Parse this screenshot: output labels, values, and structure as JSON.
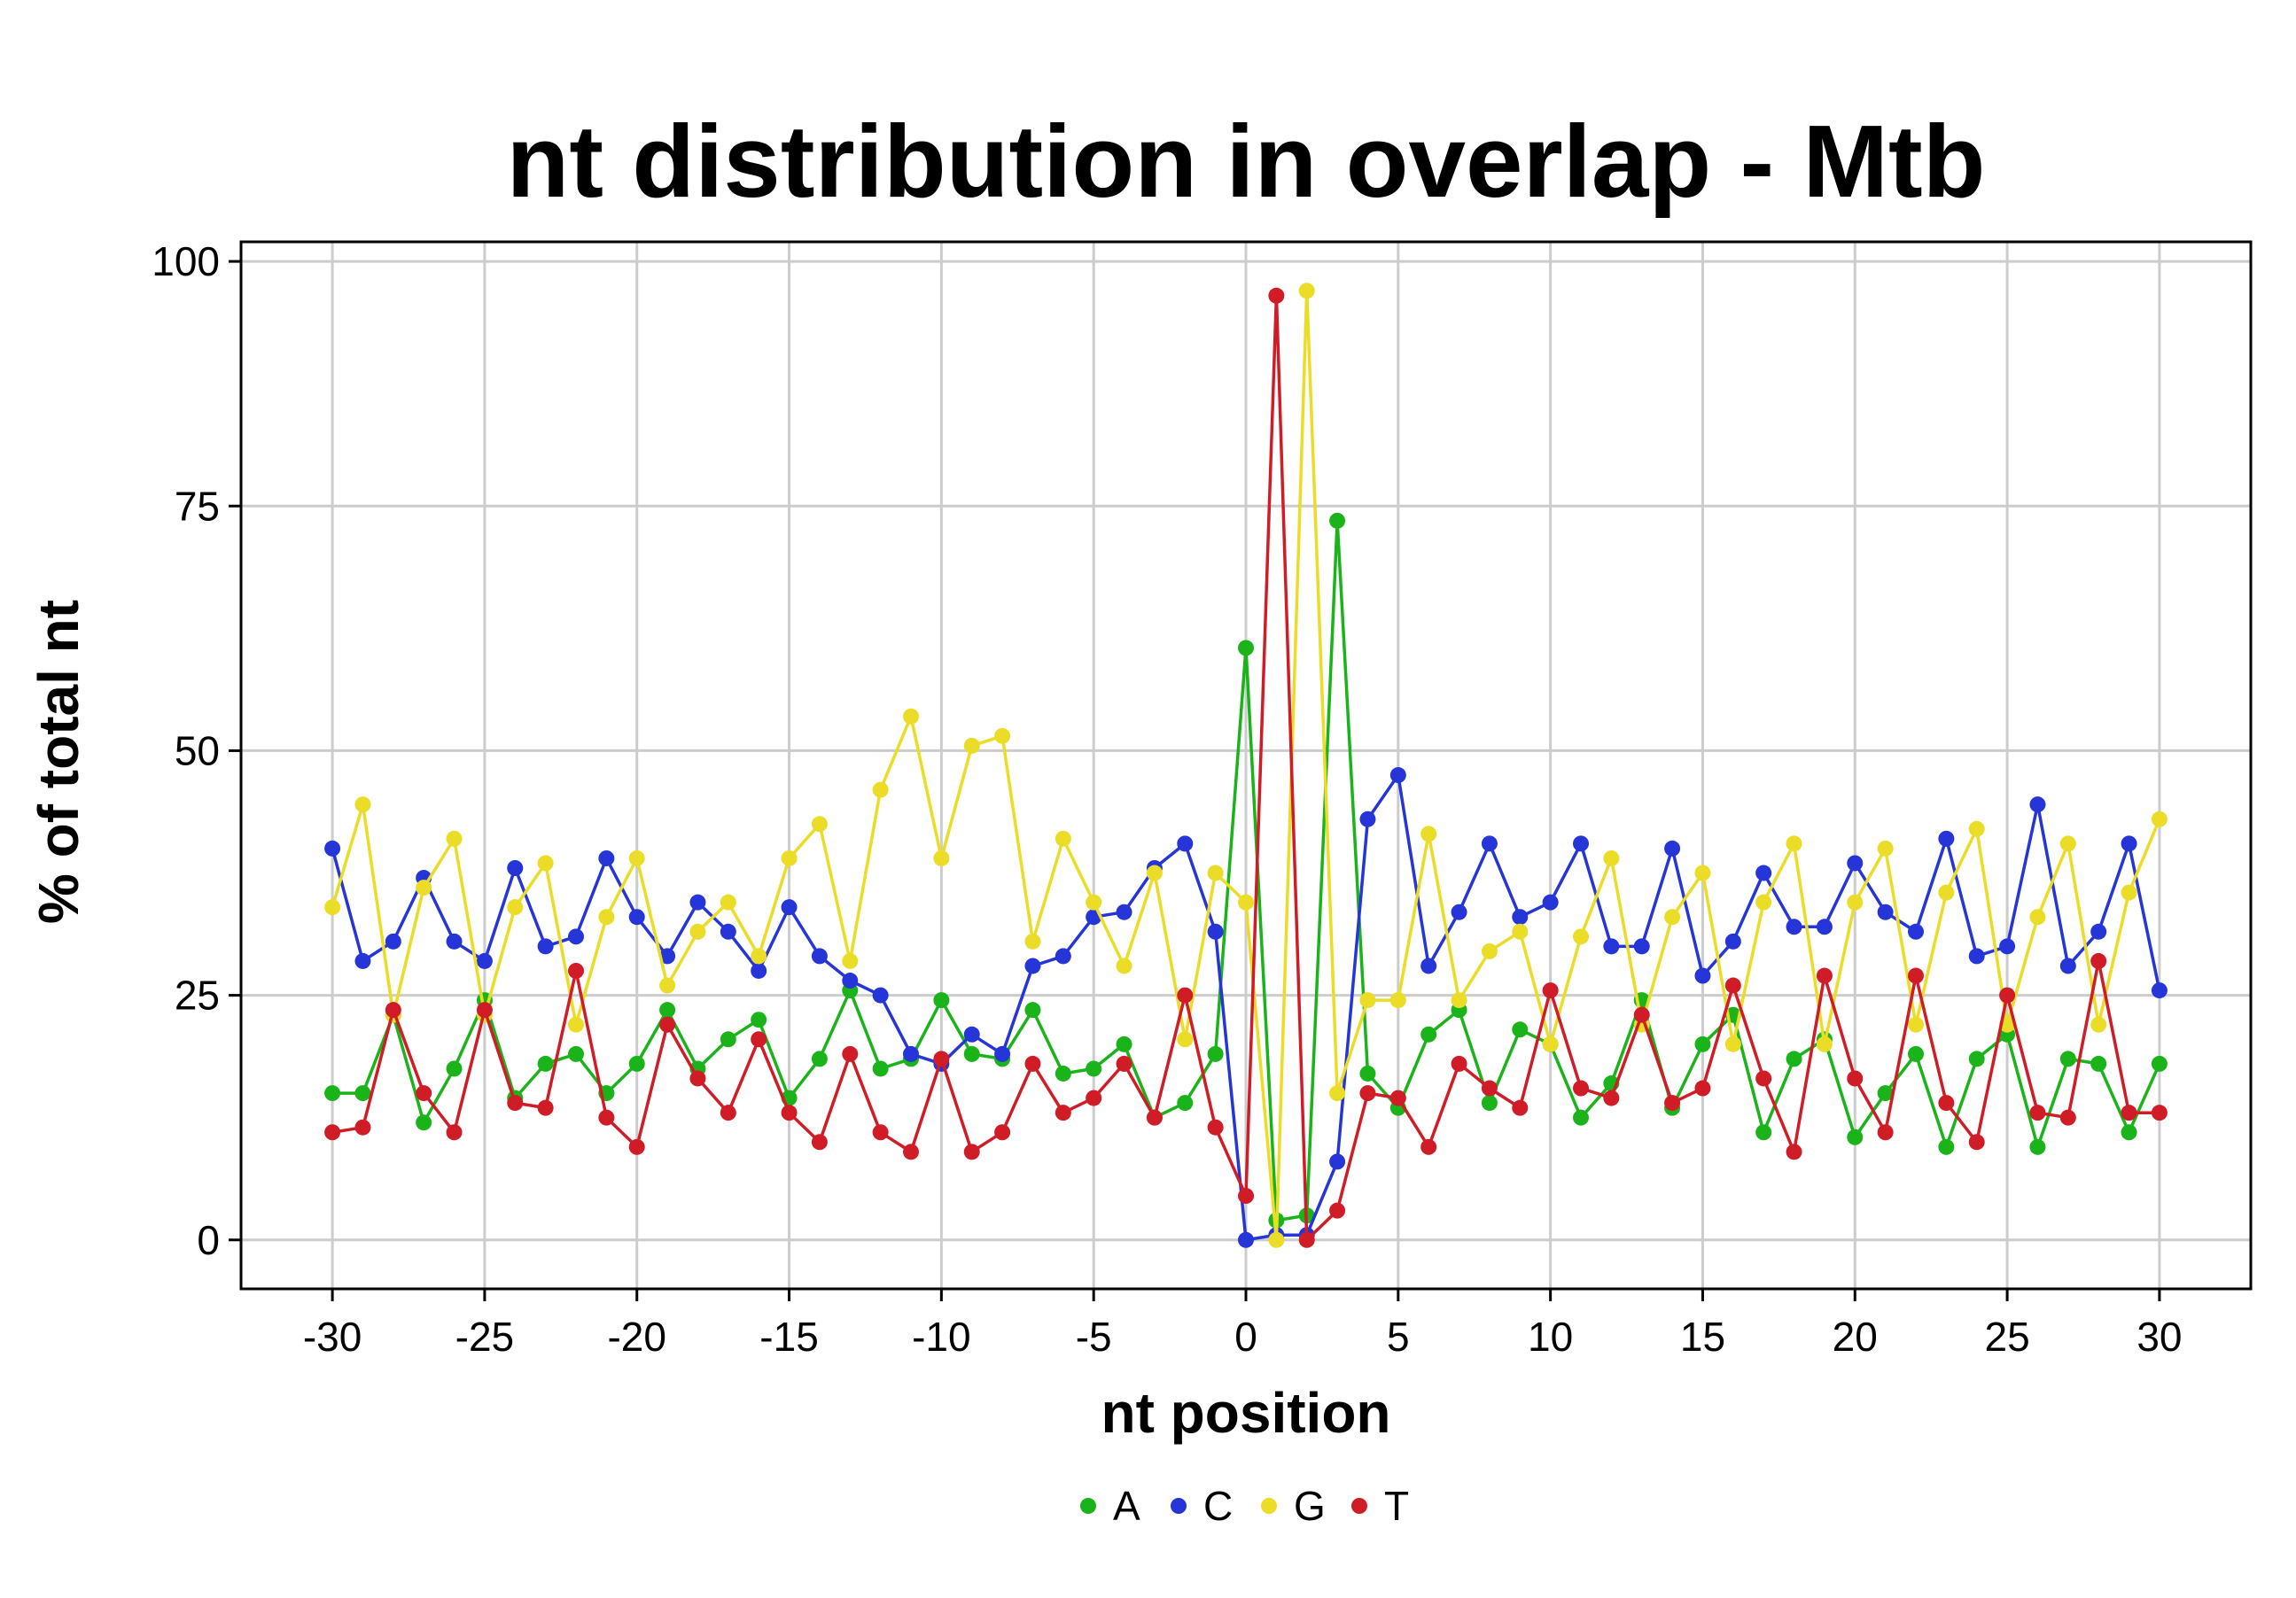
{
  "chart_data": {
    "type": "line",
    "title": "nt distribution in overlap - Mtb",
    "xlabel": "nt position",
    "ylabel": "% of total nt",
    "xlim": [
      -33,
      33
    ],
    "ylim": [
      -5,
      102
    ],
    "x_ticks": [
      -30,
      -25,
      -20,
      -15,
      -10,
      -5,
      0,
      5,
      10,
      15,
      20,
      25,
      30
    ],
    "x_tick_labels": [
      "-30",
      "-25",
      "-20",
      "-15",
      "-10",
      "-5",
      "0",
      "5",
      "10",
      "15",
      "20",
      "25",
      "30"
    ],
    "y_ticks": [
      0,
      25,
      50,
      75,
      100
    ],
    "y_tick_labels": [
      "0",
      "25",
      "50",
      "75",
      "100"
    ],
    "grid": true,
    "legend_position": "bottom",
    "x": [
      -30,
      -29,
      -28,
      -27,
      -26,
      -25,
      -24,
      -23,
      -22,
      -21,
      -20,
      -19,
      -18,
      -17,
      -16,
      -15,
      -14,
      -13,
      -12,
      -11,
      -10,
      -9,
      -8,
      -7,
      -6,
      -5,
      -4,
      -3,
      -2,
      -1,
      0,
      1,
      2,
      3,
      4,
      5,
      6,
      7,
      8,
      9,
      10,
      11,
      12,
      13,
      14,
      15,
      16,
      17,
      18,
      19,
      20,
      21,
      22,
      23,
      24,
      25,
      26,
      27,
      28,
      29,
      30
    ],
    "series": [
      {
        "name": "A",
        "color": "#1ab31a",
        "values": [
          15,
          15,
          23,
          12,
          17.5,
          24.5,
          14.5,
          18,
          19,
          15,
          18,
          23.5,
          17.5,
          20.5,
          22.5,
          14.5,
          18.5,
          25.5,
          17.5,
          18.5,
          24.5,
          19,
          18.5,
          23.5,
          17,
          17.5,
          20,
          12.5,
          14,
          19,
          60.5,
          2,
          2.5,
          73.5,
          17,
          13.5,
          21,
          23.5,
          14,
          21.5,
          20,
          12.5,
          16,
          24.5,
          13.5,
          20,
          23,
          11,
          18.5,
          20.5,
          10.5,
          15,
          19,
          9.5,
          18.5,
          21,
          9.5,
          18.5,
          18,
          11,
          18
        ]
      },
      {
        "name": "C",
        "color": "#2535d8",
        "values": [
          40,
          28.5,
          30.5,
          37,
          30.5,
          28.5,
          38,
          30,
          31,
          39,
          33,
          29,
          34.5,
          31.5,
          27.5,
          34,
          29,
          26.5,
          25,
          19,
          18,
          21,
          19,
          28,
          29,
          33,
          33.5,
          38,
          40.5,
          31.5,
          0,
          0.5,
          0.5,
          8,
          43,
          47.5,
          28,
          33.5,
          40.5,
          33,
          34.5,
          40.5,
          30,
          30,
          40,
          27,
          30.5,
          37.5,
          32,
          32,
          38.5,
          33.5,
          31.5,
          41,
          29,
          30,
          44.5,
          28,
          31.5,
          40.5,
          25.5
        ]
      },
      {
        "name": "G",
        "color": "#ebdd27",
        "values": [
          34,
          44.5,
          23,
          36,
          41,
          23,
          34,
          38.5,
          22,
          33,
          39,
          26,
          31.5,
          34.5,
          29,
          39,
          42.5,
          28.5,
          46,
          53.5,
          39,
          50.5,
          51.5,
          30.5,
          41,
          34.5,
          28,
          37.5,
          20.5,
          37.5,
          34.5,
          0,
          97,
          15,
          24.5,
          24.5,
          41.5,
          24.5,
          29.5,
          31.5,
          20,
          31,
          39,
          22,
          33,
          37.5,
          20,
          34.5,
          40.5,
          20,
          34.5,
          40,
          22,
          35.5,
          42,
          22,
          33,
          40.5,
          22,
          35.5,
          43
        ]
      },
      {
        "name": "T",
        "color": "#d01c27",
        "values": [
          11,
          11.5,
          23.5,
          15,
          11,
          23.5,
          14,
          13.5,
          27.5,
          12.5,
          9.5,
          22,
          16.5,
          13,
          20.5,
          13,
          10,
          19,
          11,
          9,
          18.5,
          9,
          11,
          18,
          13,
          14.5,
          18,
          12.5,
          25,
          11.5,
          4.5,
          96.5,
          0,
          3,
          15,
          14.5,
          9.5,
          18,
          15.5,
          13.5,
          25.5,
          15.5,
          14.5,
          23,
          14,
          15.5,
          26,
          16.5,
          9,
          27,
          16.5,
          11,
          27,
          14,
          10,
          25,
          13,
          12.5,
          28.5,
          13,
          13
        ]
      }
    ]
  }
}
